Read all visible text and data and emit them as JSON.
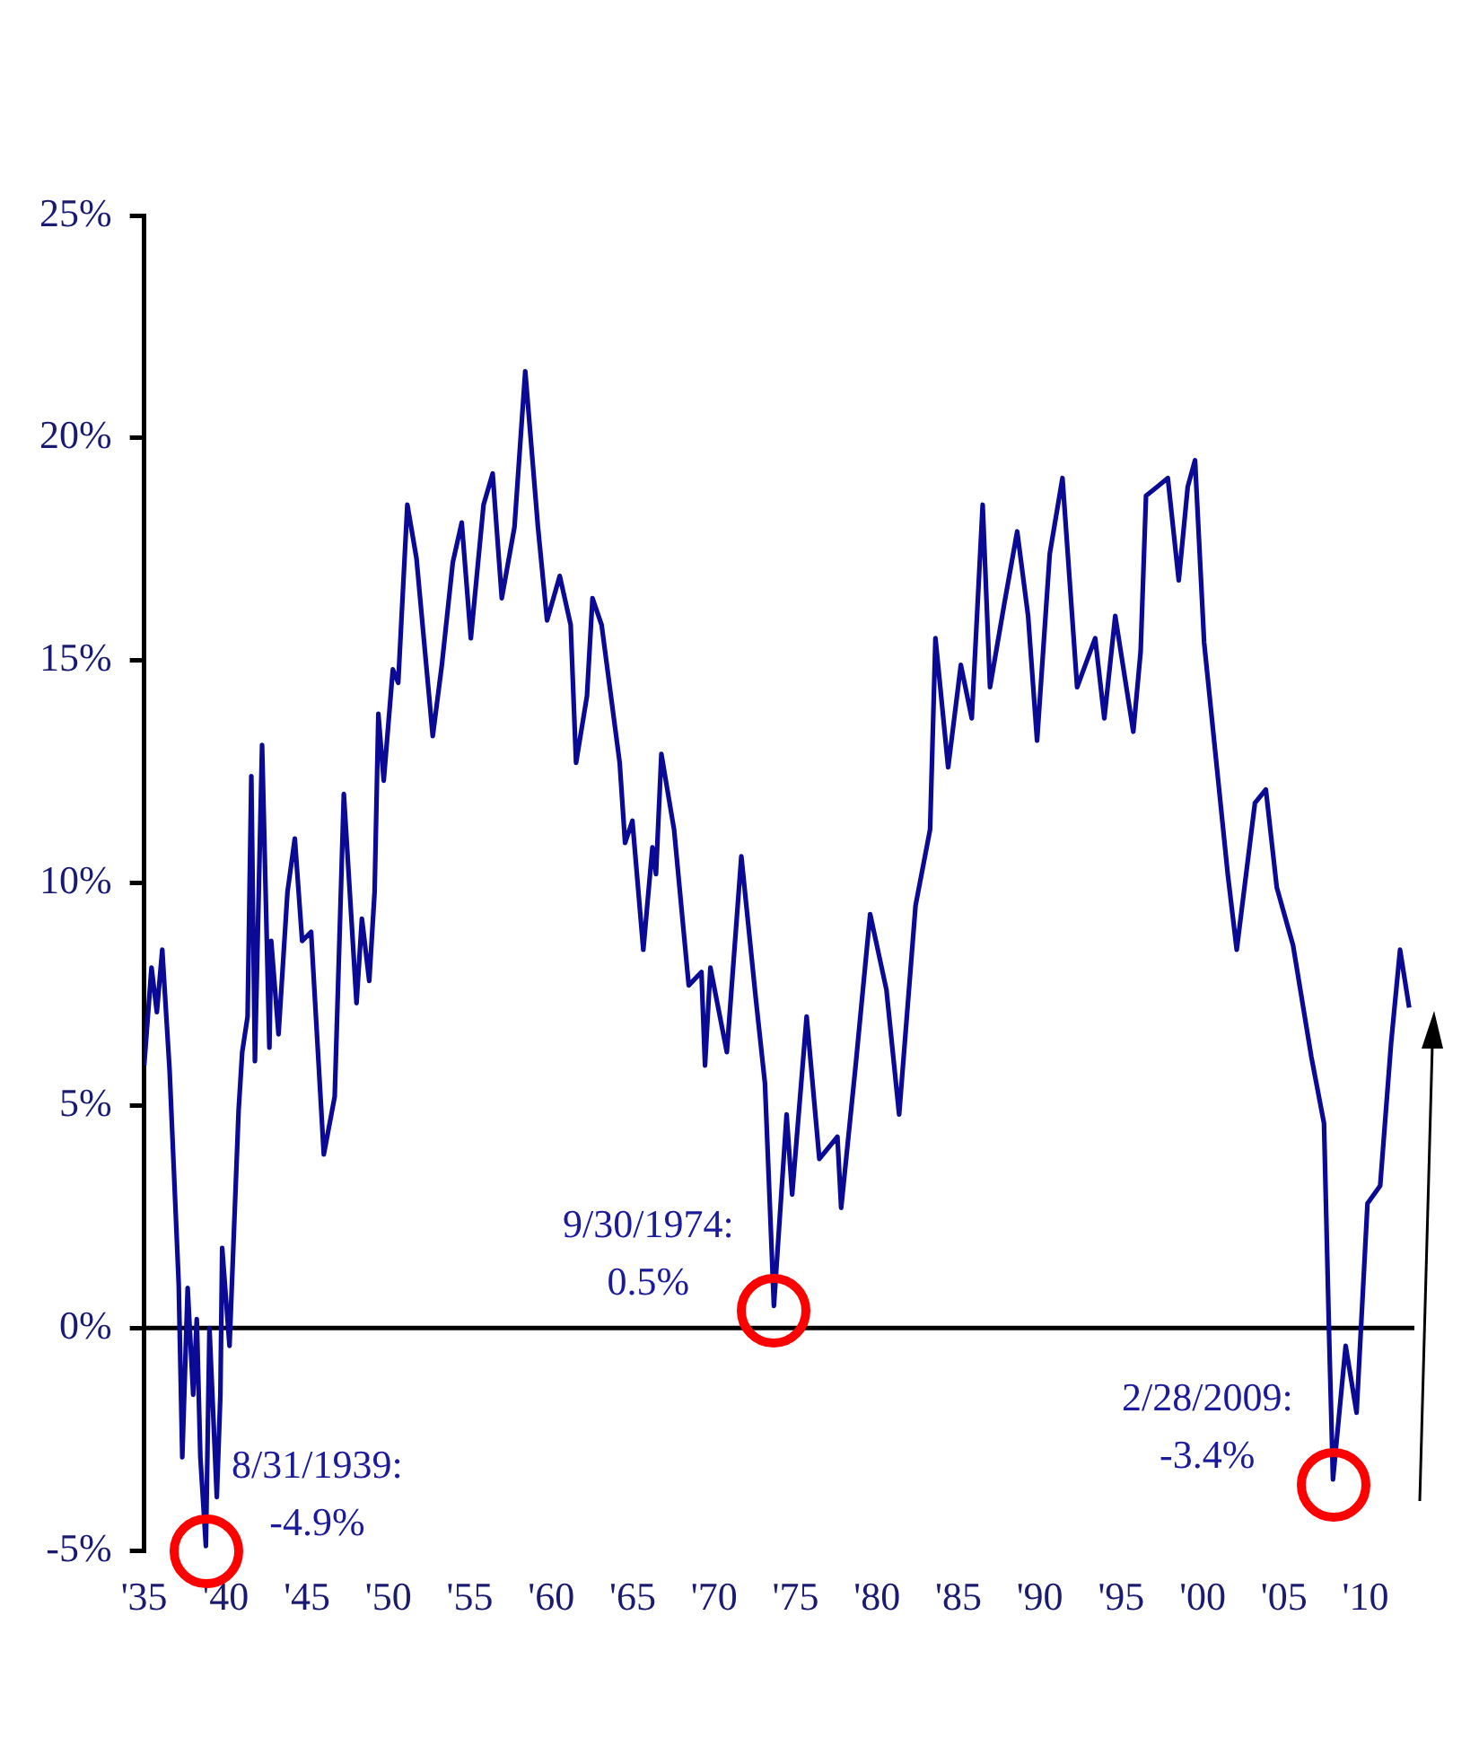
{
  "chart_data": {
    "type": "line",
    "x": [
      1935.0,
      1935.45,
      1935.78,
      1936.11,
      1936.56,
      1937.12,
      1937.34,
      1937.67,
      1938.01,
      1938.23,
      1938.45,
      1938.79,
      1939.01,
      1939.46,
      1939.68,
      1939.79,
      1940.24,
      1940.8,
      1941.02,
      1941.35,
      1941.58,
      1941.8,
      1942.24,
      1942.69,
      1942.8,
      1943.25,
      1943.8,
      1944.25,
      1944.7,
      1945.25,
      1946.03,
      1946.7,
      1947.26,
      1948.04,
      1948.37,
      1948.82,
      1949.15,
      1949.38,
      1949.71,
      1950.27,
      1950.6,
      1951.16,
      1951.72,
      1952.72,
      1953.28,
      1953.95,
      1954.5,
      1955.06,
      1955.84,
      1956.4,
      1956.96,
      1957.74,
      1958.4,
      1959.18,
      1959.74,
      1960.52,
      1961.19,
      1961.52,
      1962.19,
      1962.53,
      1963.09,
      1964.2,
      1964.53,
      1964.98,
      1965.65,
      1966.21,
      1966.43,
      1966.76,
      1967.54,
      1968.44,
      1969.22,
      1969.44,
      1969.77,
      1970.78,
      1971.67,
      1972.56,
      1973.12,
      1973.67,
      1974.45,
      1974.79,
      1975.68,
      1976.46,
      1977.57,
      1977.8,
      1978.69,
      1979.58,
      1980.58,
      1981.36,
      1982.37,
      1983.26,
      1983.59,
      1984.37,
      1985.15,
      1985.82,
      1986.49,
      1986.94,
      1987.83,
      1988.61,
      1989.28,
      1989.83,
      1990.61,
      1991.39,
      1992.29,
      1993.4,
      1993.96,
      1994.63,
      1995.74,
      1996.19,
      1996.52,
      1997.19,
      1997.86,
      1998.53,
      1999.08,
      1999.53,
      2000.09,
      2000.87,
      2001.54,
      2002.09,
      2003.21,
      2003.88,
      2004.55,
      2005.55,
      2006.67,
      2007.45,
      2007.78,
      2008.0,
      2008.78,
      2009.45,
      2010.12,
      2010.9,
      2011.57,
      2012.12,
      2012.68
    ],
    "series": [
      {
        "color": "#0a0a96",
        "values": [
          5.9,
          8.1,
          7.1,
          8.5,
          5.8,
          1.0,
          -2.9,
          0.9,
          -1.5,
          0.2,
          -2.9,
          -4.9,
          0.0,
          -3.8,
          -1.5,
          1.8,
          -0.4,
          4.9,
          6.2,
          7.0,
          12.4,
          6.0,
          13.1,
          6.3,
          8.7,
          6.6,
          9.8,
          11.0,
          8.7,
          8.9,
          3.9,
          5.2,
          12.0,
          7.3,
          9.2,
          7.8,
          9.8,
          13.8,
          12.3,
          14.8,
          14.5,
          18.5,
          17.3,
          13.3,
          14.9,
          17.2,
          18.1,
          15.5,
          18.5,
          19.2,
          16.4,
          18.0,
          21.5,
          18.0,
          15.9,
          16.9,
          15.8,
          12.7,
          14.2,
          16.4,
          15.8,
          12.7,
          10.9,
          11.4,
          8.5,
          10.8,
          10.2,
          12.9,
          11.2,
          7.7,
          8.0,
          5.9,
          8.1,
          6.2,
          10.6,
          7.4,
          5.5,
          0.5,
          4.8,
          3.0,
          7.0,
          3.8,
          4.3,
          2.7,
          5.9,
          9.3,
          7.6,
          4.8,
          9.5,
          11.2,
          15.5,
          12.6,
          14.9,
          13.7,
          18.5,
          14.4,
          16.3,
          17.9,
          16.0,
          13.2,
          17.4,
          19.1,
          14.4,
          15.5,
          13.7,
          16.0,
          13.4,
          15.2,
          18.7,
          18.9,
          19.1,
          16.8,
          18.9,
          19.5,
          15.4,
          12.6,
          10.2,
          8.5,
          11.8,
          12.1,
          9.9,
          8.6,
          6.1,
          4.6,
          -0.4,
          -3.4,
          -0.4,
          -1.9,
          2.8,
          3.2,
          6.4,
          8.5,
          7.2
        ]
      }
    ],
    "xlim": [
      1935,
      2013
    ],
    "xticks": [
      {
        "value": 1935,
        "label": "'35"
      },
      {
        "value": 1940,
        "label": "'40"
      },
      {
        "value": 1945,
        "label": "'45"
      },
      {
        "value": 1950,
        "label": "'50"
      },
      {
        "value": 1955,
        "label": "'55"
      },
      {
        "value": 1960,
        "label": "'60"
      },
      {
        "value": 1965,
        "label": "'65"
      },
      {
        "value": 1970,
        "label": "'70"
      },
      {
        "value": 1975,
        "label": "'75"
      },
      {
        "value": 1980,
        "label": "'80"
      },
      {
        "value": 1985,
        "label": "'85"
      },
      {
        "value": 1990,
        "label": "'90"
      },
      {
        "value": 1995,
        "label": "'95"
      },
      {
        "value": 2000,
        "label": "'00"
      },
      {
        "value": 2005,
        "label": "'05"
      },
      {
        "value": 2010,
        "label": "'10"
      }
    ],
    "ylim": [
      -5,
      25
    ],
    "yticks": [
      {
        "value": -5,
        "label": "-5%"
      },
      {
        "value": 0,
        "label": "0%"
      },
      {
        "value": 5,
        "label": "5%"
      },
      {
        "value": 10,
        "label": "10%"
      },
      {
        "value": 15,
        "label": "15%"
      },
      {
        "value": 20,
        "label": "20%"
      },
      {
        "value": 25,
        "label": "25%"
      }
    ],
    "ref_lines": [
      {
        "axis": "y",
        "value": 0,
        "color": "#000000"
      }
    ],
    "annotations": [
      {
        "text": "8/31/1939:\n-4.9%",
        "x": 1938.79,
        "y": -4.9
      },
      {
        "text": "9/30/1974:\n0.5%",
        "x": 1973.67,
        "y": 0.5
      },
      {
        "text": "2/28/2009:\n-3.4%",
        "x": 2008.0,
        "y": -3.4
      }
    ],
    "grid": false,
    "legend": false,
    "marker": "none",
    "line_style": "solid"
  }
}
